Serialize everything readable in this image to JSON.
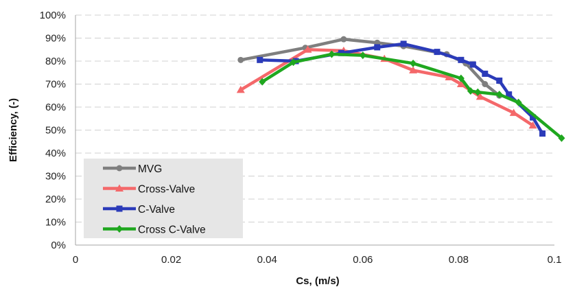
{
  "chart_data": {
    "type": "line",
    "xlabel": "Cs, (m/s)",
    "ylabel": "Efficiency, (-)",
    "xlim": [
      0,
      0.1
    ],
    "ylim": [
      0,
      100
    ],
    "x_ticks": [
      "0",
      "0.02",
      "0.04",
      "0.06",
      "0.08",
      "0.1"
    ],
    "y_ticks": [
      "0%",
      "10%",
      "20%",
      "30%",
      "40%",
      "50%",
      "60%",
      "70%",
      "80%",
      "90%",
      "100%"
    ],
    "grid": true,
    "legend_position": "bottom-left",
    "series": [
      {
        "name": "MVG",
        "color": "#7f7f7f",
        "marker": "circle",
        "points": [
          [
            0.0345,
            80.5
          ],
          [
            0.048,
            85.8
          ],
          [
            0.056,
            89.5
          ],
          [
            0.063,
            88.0
          ],
          [
            0.0685,
            86.5
          ],
          [
            0.0775,
            83.0
          ],
          [
            0.0815,
            79.0
          ],
          [
            0.0855,
            70.0
          ],
          [
            0.0885,
            65.0
          ]
        ]
      },
      {
        "name": "Cross-Valve",
        "color": "#f4686a",
        "marker": "triangle",
        "points": [
          [
            0.0345,
            67.5
          ],
          [
            0.0485,
            85.0
          ],
          [
            0.056,
            84.5
          ],
          [
            0.0645,
            81.0
          ],
          [
            0.0705,
            76.0
          ],
          [
            0.078,
            73.0
          ],
          [
            0.0805,
            70.0
          ],
          [
            0.0845,
            64.5
          ],
          [
            0.0915,
            57.5
          ],
          [
            0.0955,
            52.0
          ]
        ]
      },
      {
        "name": "C-Valve",
        "color": "#2b3bb9",
        "marker": "square",
        "points": [
          [
            0.0385,
            80.5
          ],
          [
            0.046,
            80.0
          ],
          [
            0.0555,
            83.5
          ],
          [
            0.063,
            86.0
          ],
          [
            0.0685,
            87.5
          ],
          [
            0.0755,
            84.0
          ],
          [
            0.0805,
            80.5
          ],
          [
            0.083,
            78.5
          ],
          [
            0.0855,
            74.5
          ],
          [
            0.0885,
            71.5
          ],
          [
            0.0905,
            65.5
          ],
          [
            0.0955,
            55.5
          ],
          [
            0.0975,
            48.5
          ]
        ]
      },
      {
        "name": "Cross C-Valve",
        "color": "#1fa71f",
        "marker": "diamond",
        "points": [
          [
            0.039,
            71.0
          ],
          [
            0.0455,
            79.5
          ],
          [
            0.0535,
            83.0
          ],
          [
            0.06,
            82.5
          ],
          [
            0.0705,
            79.0
          ],
          [
            0.0805,
            72.5
          ],
          [
            0.0825,
            67.0
          ],
          [
            0.084,
            66.5
          ],
          [
            0.0885,
            65.5
          ],
          [
            0.0925,
            62.0
          ],
          [
            0.1015,
            46.5
          ]
        ]
      }
    ]
  }
}
